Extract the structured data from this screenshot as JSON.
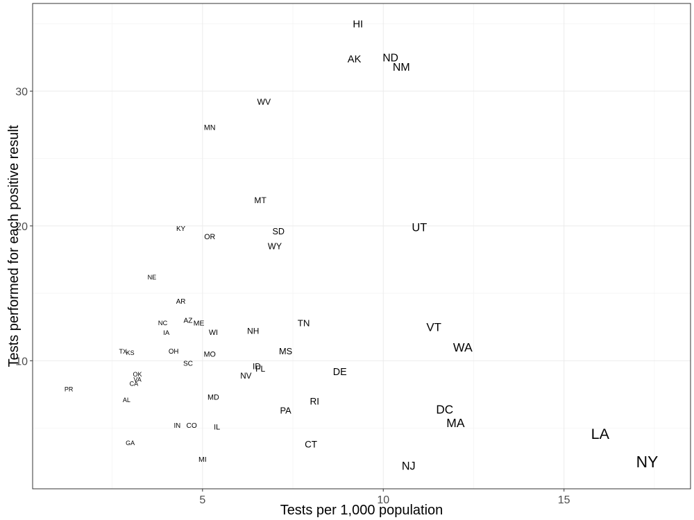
{
  "chart_data": {
    "type": "scatter",
    "xlabel": "Tests per 1,000 population",
    "ylabel": "Tests performed for each positive result",
    "xlim": [
      0.3,
      18.5
    ],
    "ylim": [
      0.5,
      36.5
    ],
    "x_ticks": [
      5,
      10,
      15
    ],
    "y_ticks": [
      10,
      20,
      30
    ],
    "x_minor_ticks": [
      2.5,
      7.5,
      12.5,
      17.5
    ],
    "y_minor_ticks": [
      5,
      15,
      25,
      35
    ],
    "grid": true,
    "points": [
      {
        "label": "HI",
        "x": 9.3,
        "y": 35.0
      },
      {
        "label": "AK",
        "x": 9.2,
        "y": 32.4
      },
      {
        "label": "ND",
        "x": 10.2,
        "y": 32.5
      },
      {
        "label": "NM",
        "x": 10.5,
        "y": 31.8
      },
      {
        "label": "WV",
        "x": 6.7,
        "y": 29.2
      },
      {
        "label": "MN",
        "x": 5.2,
        "y": 27.3
      },
      {
        "label": "MT",
        "x": 6.6,
        "y": 21.9
      },
      {
        "label": "UT",
        "x": 11.0,
        "y": 19.9
      },
      {
        "label": "KY",
        "x": 4.4,
        "y": 19.8
      },
      {
        "label": "SD",
        "x": 7.1,
        "y": 19.6
      },
      {
        "label": "OR",
        "x": 5.2,
        "y": 19.2
      },
      {
        "label": "WY",
        "x": 7.0,
        "y": 18.5
      },
      {
        "label": "NE",
        "x": 3.6,
        "y": 16.2
      },
      {
        "label": "AR",
        "x": 4.4,
        "y": 14.4
      },
      {
        "label": "TN",
        "x": 7.8,
        "y": 12.8
      },
      {
        "label": "AZ",
        "x": 4.6,
        "y": 13.0
      },
      {
        "label": "ME",
        "x": 4.9,
        "y": 12.8
      },
      {
        "label": "NC",
        "x": 3.9,
        "y": 12.8
      },
      {
        "label": "VT",
        "x": 11.4,
        "y": 12.5
      },
      {
        "label": "IA",
        "x": 4.0,
        "y": 12.1
      },
      {
        "label": "NH",
        "x": 6.4,
        "y": 12.2
      },
      {
        "label": "WI",
        "x": 5.3,
        "y": 12.1
      },
      {
        "label": "WA",
        "x": 12.2,
        "y": 11.0
      },
      {
        "label": "TX",
        "x": 2.8,
        "y": 10.7
      },
      {
        "label": "KS",
        "x": 3.0,
        "y": 10.6
      },
      {
        "label": "OH",
        "x": 4.2,
        "y": 10.7
      },
      {
        "label": "MS",
        "x": 7.3,
        "y": 10.7
      },
      {
        "label": "MO",
        "x": 5.2,
        "y": 10.5
      },
      {
        "label": "SC",
        "x": 4.6,
        "y": 9.8
      },
      {
        "label": "ID",
        "x": 6.5,
        "y": 9.6
      },
      {
        "label": "FL",
        "x": 6.6,
        "y": 9.4
      },
      {
        "label": "DE",
        "x": 8.8,
        "y": 9.2
      },
      {
        "label": "OK",
        "x": 3.2,
        "y": 9.0
      },
      {
        "label": "NV",
        "x": 6.2,
        "y": 8.9
      },
      {
        "label": "VA",
        "x": 3.2,
        "y": 8.6
      },
      {
        "label": "CA",
        "x": 3.1,
        "y": 8.3
      },
      {
        "label": "PR",
        "x": 1.3,
        "y": 7.9
      },
      {
        "label": "MD",
        "x": 5.3,
        "y": 7.3
      },
      {
        "label": "AL",
        "x": 2.9,
        "y": 7.1
      },
      {
        "label": "RI",
        "x": 8.1,
        "y": 7.0
      },
      {
        "label": "DC",
        "x": 11.7,
        "y": 6.4
      },
      {
        "label": "PA",
        "x": 7.3,
        "y": 6.3
      },
      {
        "label": "MA",
        "x": 12.0,
        "y": 5.4
      },
      {
        "label": "IN",
        "x": 4.3,
        "y": 5.2
      },
      {
        "label": "CO",
        "x": 4.7,
        "y": 5.2
      },
      {
        "label": "IL",
        "x": 5.4,
        "y": 5.1
      },
      {
        "label": "LA",
        "x": 16.0,
        "y": 4.6
      },
      {
        "label": "GA",
        "x": 3.0,
        "y": 3.9
      },
      {
        "label": "CT",
        "x": 8.0,
        "y": 3.8
      },
      {
        "label": "MI",
        "x": 5.0,
        "y": 2.7
      },
      {
        "label": "NY",
        "x": 17.3,
        "y": 2.5
      },
      {
        "label": "NJ",
        "x": 10.7,
        "y": 2.2
      }
    ]
  }
}
